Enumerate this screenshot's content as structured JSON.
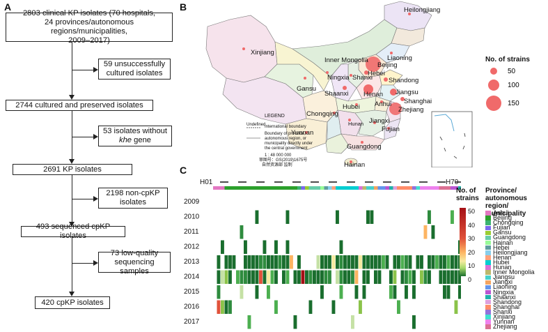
{
  "panels": {
    "a": "A",
    "b": "B",
    "c": "C"
  },
  "flow": {
    "b1": {
      "l1": "2803 clinical KP isolates (70 hospitals,",
      "l2": "24 provinces/autonomous regions/municipalities,",
      "l3": "2009–2017)"
    },
    "s1": {
      "l1": "59 unsuccessfully",
      "l2": "cultured isolates"
    },
    "b2": "2744 cultured and preserved  isolates",
    "s2": {
      "l1": "53 isolates without",
      "l2": "khe",
      "l2b": " gene"
    },
    "b3": "2691 KP isolates",
    "s3": {
      "l1": "2198 non-cpKP",
      "l2": "isolates"
    },
    "b4": "493 sequenced cpKP isolates",
    "s4": {
      "l1": "73 low-quality",
      "l2": "sequencing samples"
    },
    "b5": "420 cpKP isolates"
  },
  "map": {
    "provinces": [
      "Heilongjiang",
      "Xinjiang",
      "Inner Mongolia",
      "Liaoning",
      "Beijing",
      "Hebei",
      "Shandong",
      "Ningxia",
      "Shanxi",
      "Gansu",
      "Shaanxi",
      "Henan",
      "Jiangsu",
      "Shanghai",
      "Anhui",
      "Hubei",
      "Zhejiang",
      "Chongqing",
      "Hunan",
      "Jiangxi",
      "Fujian",
      "Yunnan",
      "Guangdong",
      "Hainan"
    ],
    "legend_title": "LEGEND",
    "undefined_label": "Undefined",
    "intl_boundary": "International boundary",
    "prov_boundary_l1": "Boundary of province,",
    "prov_boundary_l2": "autonomous region, or",
    "prov_boundary_l3": "municipality directly under",
    "prov_boundary_l4": "the central government",
    "scale": "1 : 48 000 000",
    "review_no": "审图号：GS(2019)1675号",
    "supervisor": "自然资源部 监制",
    "size_legend_title": "No. of strains",
    "size_legend_values": [
      "50",
      "100",
      "150"
    ]
  },
  "heatmap": {
    "start_label": "H01",
    "end_label": "H70",
    "years": [
      "2009",
      "2010",
      "2011",
      "2012",
      "2013",
      "2014",
      "2015",
      "2016",
      "2017"
    ],
    "colorbar_title_l1": "No. of",
    "colorbar_title_l2": "strains",
    "colorbar_ticks": [
      "50",
      "40",
      "30",
      "20",
      "10",
      "0"
    ],
    "province_legend_title_l1": "Province/",
    "province_legend_title_l2": "autonomous region/",
    "province_legend_title_l3": "municipality",
    "province_legend": [
      "Anhui",
      "Beijing",
      "Chongqing",
      "Fujian",
      "Gansu",
      "Guangdong",
      "Hainan",
      "Hebei",
      "Heilongjiang",
      "Henan",
      "Hubei",
      "Hunan",
      "Inner Mongolia",
      "Jiangsu",
      "Jiangxi",
      "Liaoning",
      "Ningxia",
      "Shaanxi",
      "Shandong",
      "Shanghai",
      "Shanxi",
      "Xinjiang",
      "Yunnan",
      "Zhejiang"
    ],
    "province_colors": [
      "#e377c2",
      "#2ca02c",
      "#3cb371",
      "#7b68ee",
      "#9acd32",
      "#66cdaa",
      "#98fb98",
      "#5f9ea0",
      "#87ceeb",
      "#ffa07a",
      "#00ced1",
      "#da70d6",
      "#bdb76b",
      "#48d1cc",
      "#f4a460",
      "#6495ed",
      "#ba55d3",
      "#20b2aa",
      "#dda0dd",
      "#ff8c69",
      "#9370db",
      "#40e0d0",
      "#ee82ee",
      "#db7093"
    ]
  },
  "colors": {
    "bubble": "#f06a6a",
    "dark_green": "#1a6e2e",
    "heat_high": "#a50f15"
  }
}
